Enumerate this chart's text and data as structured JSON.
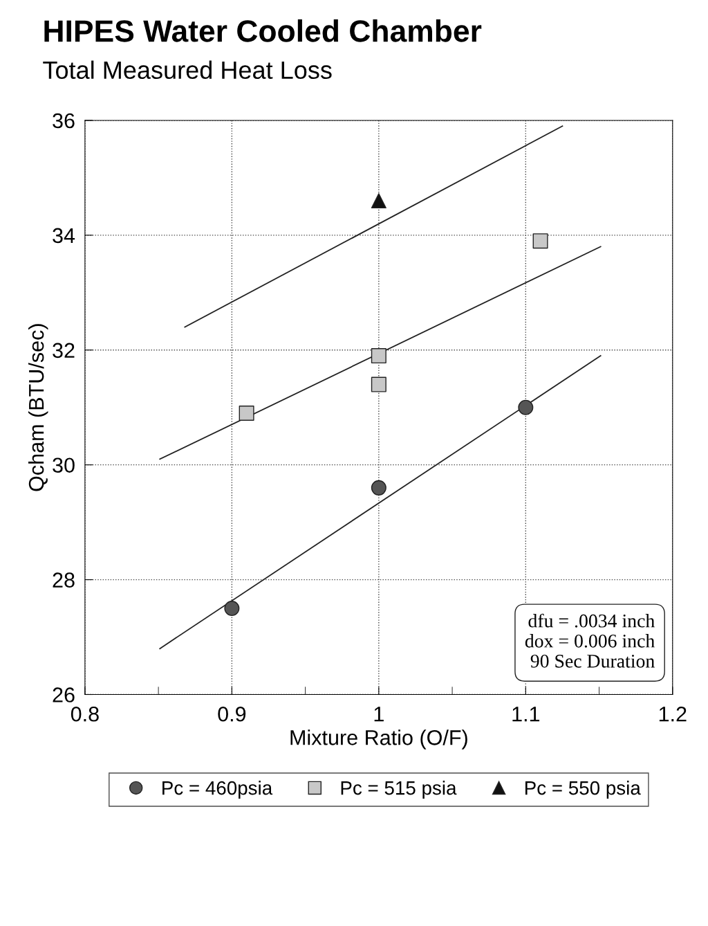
{
  "chart_data": {
    "type": "scatter",
    "title": "HIPES Water Cooled Chamber",
    "subtitle": "Total Measured Heat Loss",
    "xlabel": "Mixture Ratio (O/F)",
    "ylabel": "Qcham (BTU/sec)",
    "xlim": [
      0.8,
      1.2
    ],
    "xticks": [
      0.8,
      {
        "value": 0.85,
        "label": null
      },
      0.9,
      {
        "value": 0.95,
        "label": null
      },
      1,
      {
        "value": 1.05,
        "label": null
      },
      1.1,
      {
        "value": 1.15,
        "label": null
      },
      1.2
    ],
    "ylim": [
      26,
      36
    ],
    "yticks": [
      26,
      28,
      30,
      32,
      34,
      36
    ],
    "grid": true,
    "legend": "bottom",
    "series": [
      {
        "name": "Pc = 460psia",
        "marker": "circle",
        "color": "#555555",
        "x": [
          0.9,
          1.0,
          1.1
        ],
        "values": [
          27.5,
          29.6,
          31.0
        ]
      },
      {
        "name": "Pc = 515 psia",
        "marker": "square",
        "color": "#c8c8c8",
        "x": [
          0.91,
          1.0,
          1.0,
          1.11
        ],
        "values": [
          30.9,
          31.9,
          31.4,
          33.9
        ]
      },
      {
        "name": "Pc = 550 psia",
        "marker": "triangle",
        "color": "#111111",
        "x": [
          1.0
        ],
        "values": [
          34.6
        ]
      },
      {
        "type": "line",
        "marker": "none",
        "color": "#222222",
        "x": [
          0.851,
          1.151
        ],
        "values": [
          26.8,
          31.9
        ]
      },
      {
        "type": "line",
        "marker": "none",
        "color": "#222222",
        "x": [
          0.851,
          1.151
        ],
        "values": [
          30.1,
          33.8
        ]
      },
      {
        "type": "line",
        "marker": "none",
        "color": "#222222",
        "x": [
          0.868,
          1.125
        ],
        "values": [
          32.4,
          35.9
        ]
      }
    ],
    "annotations": [
      "dfu = .0034 inch\ndox = 0.006 inch\n90 Sec Duration"
    ]
  }
}
